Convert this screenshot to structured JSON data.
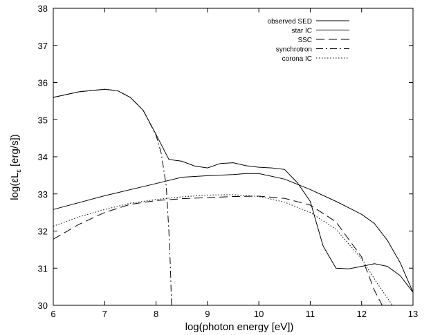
{
  "chart_data": {
    "type": "line",
    "xlabel": "log(photon energy [eV])",
    "ylabel": "log(εL",
    "ylabel_sub": "ε",
    "ylabel_rest": " [erg/s])",
    "xlim": [
      6,
      13
    ],
    "ylim": [
      30,
      38
    ],
    "xticks": [
      6,
      7,
      8,
      9,
      10,
      11,
      12,
      13
    ],
    "yticks": [
      30,
      31,
      32,
      33,
      34,
      35,
      36,
      37,
      38
    ],
    "legend_position": "top-right",
    "series": [
      {
        "name": "observed SED",
        "dash": "solid",
        "x": [
          6.0,
          6.5,
          7.0,
          7.25,
          7.5,
          7.75,
          8.0,
          8.25,
          8.5,
          8.75,
          9.0,
          9.25,
          9.5,
          9.75,
          10.0,
          10.25,
          10.5,
          10.75,
          11.0,
          11.25,
          11.5,
          11.75,
          12.0,
          12.25,
          12.5,
          12.75,
          13.0
        ],
        "y": [
          35.6,
          35.75,
          35.82,
          35.78,
          35.6,
          35.25,
          34.6,
          33.93,
          33.88,
          33.75,
          33.7,
          33.82,
          33.84,
          33.76,
          33.72,
          33.7,
          33.66,
          33.3,
          32.8,
          31.6,
          31.0,
          30.98,
          31.05,
          31.12,
          31.05,
          30.8,
          30.35
        ]
      },
      {
        "name": "star IC",
        "dash": "solid",
        "x": [
          6.0,
          7.0,
          8.0,
          8.5,
          9.0,
          9.5,
          9.75,
          10.0,
          10.5,
          11.0,
          11.5,
          12.0,
          12.25,
          12.5,
          12.75,
          13.0
        ],
        "y": [
          32.58,
          32.95,
          33.28,
          33.45,
          33.49,
          33.52,
          33.55,
          33.55,
          33.4,
          33.12,
          32.8,
          32.45,
          32.2,
          31.75,
          31.15,
          30.35
        ]
      },
      {
        "name": "SSC",
        "dash": "long",
        "x": [
          6.0,
          6.5,
          7.0,
          7.5,
          8.0,
          8.5,
          9.0,
          9.5,
          10.0,
          10.5,
          11.0,
          11.5,
          12.0,
          12.25,
          12.4
        ],
        "y": [
          31.78,
          32.18,
          32.5,
          32.72,
          32.82,
          32.87,
          32.9,
          32.93,
          32.94,
          32.88,
          32.7,
          32.25,
          31.3,
          30.4,
          30.0
        ]
      },
      {
        "name": "synchrotron",
        "dash": "dashdot",
        "x": [
          6.0,
          6.5,
          7.0,
          7.25,
          7.5,
          7.75,
          8.0,
          8.1,
          8.2,
          8.25,
          8.28,
          8.3
        ],
        "y": [
          35.6,
          35.75,
          35.82,
          35.78,
          35.6,
          35.25,
          34.58,
          34.1,
          33.2,
          32.0,
          31.0,
          30.0
        ]
      },
      {
        "name": "corona IC",
        "dash": "dotted",
        "x": [
          6.0,
          6.5,
          7.0,
          7.5,
          8.0,
          8.5,
          9.0,
          9.5,
          10.0,
          10.5,
          11.0,
          11.5,
          12.0,
          12.3,
          12.6
        ],
        "y": [
          32.13,
          32.38,
          32.58,
          32.75,
          32.85,
          32.92,
          32.97,
          32.98,
          32.93,
          32.78,
          32.5,
          32.05,
          31.25,
          30.6,
          30.0
        ]
      }
    ]
  }
}
